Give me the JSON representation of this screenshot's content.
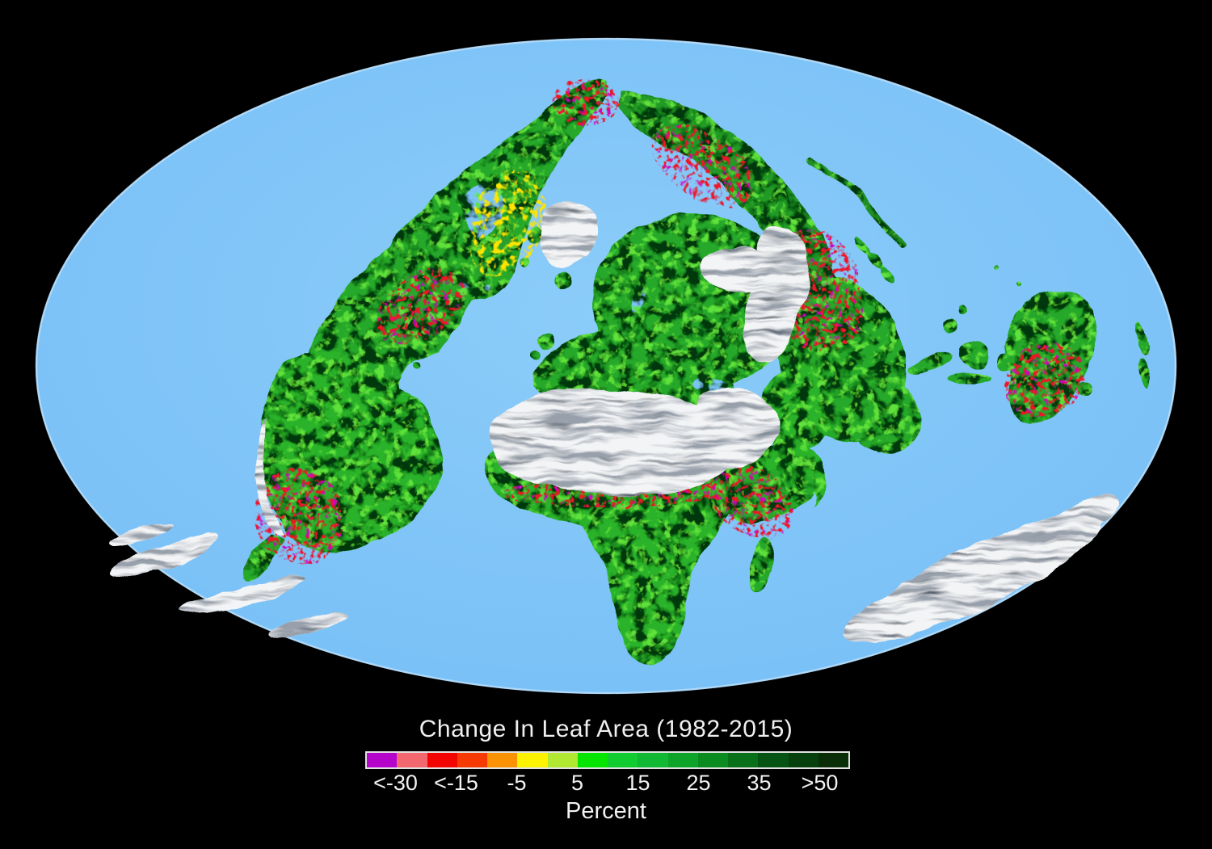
{
  "legend": {
    "title": "Change In Leaf Area (1982-2015)",
    "unit_label": "Percent",
    "tick_labels": [
      "<-30",
      "<-15",
      "-5",
      "5",
      "15",
      "25",
      "35",
      ">50"
    ],
    "colorbar_colors": [
      "#b505cb",
      "#f2686e",
      "#f20400",
      "#f63a04",
      "#fa9204",
      "#fdf202",
      "#b0e832",
      "#06e402",
      "#10cc30",
      "#10b834",
      "#0ea42a",
      "#0a8c20",
      "#087018",
      "#065413",
      "#05400d",
      "#0a2f08"
    ]
  },
  "map": {
    "ocean_color": "#7cc2f7",
    "background_color": "#000000",
    "land_greening_color": "#27a82c",
    "land_browning_color": "#e81030",
    "no_data_ice_color": "#f3f4f6"
  }
}
